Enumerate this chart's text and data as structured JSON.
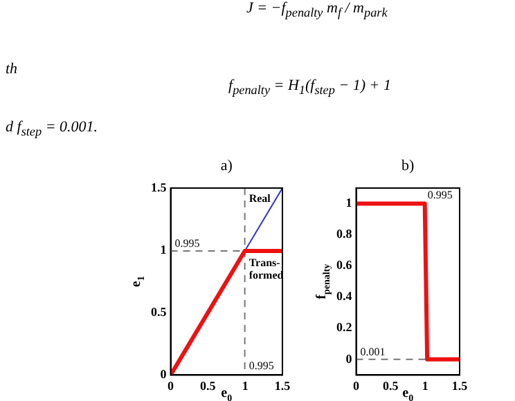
{
  "chart_data": [
    {
      "type": "other",
      "annotations": [
        "J = −f$_{penalty}$ m$_{f}$ / m$_{park}$",
        "th",
        "f$_{penalty}$ = H$_{1}$(f$_{step}$ − 1) + 1",
        "d  f$_{step}$ = 0.001."
      ]
    },
    {
      "type": "line",
      "title": "a)",
      "xlabel": "e$_{0}$",
      "ylabel": "e$_{1}$",
      "xlim": [
        0,
        1.5
      ],
      "ylim": [
        0,
        1.5
      ],
      "xticks": [
        0,
        0.5,
        1,
        1.5
      ],
      "yticks": [
        0,
        0.5,
        1,
        1.5
      ],
      "grid": false,
      "legend": false,
      "series": [
        {
          "name": "Real",
          "color": "#3333cc",
          "x": [
            0.995,
            1.5
          ],
          "values": [
            0.995,
            1.5
          ]
        },
        {
          "name": "Trans- formed",
          "color": "#ee1111",
          "x": [
            0,
            0.995,
            1.5
          ],
          "values": [
            0,
            0.995,
            0.995
          ]
        }
      ],
      "ref_lines": [
        {
          "axis": "x",
          "value": 0.995,
          "label": "0.995",
          "line_style": "dashed"
        },
        {
          "axis": "y",
          "value": 0.995,
          "label": "0.995",
          "line_style": "dashed"
        }
      ]
    },
    {
      "type": "line",
      "title": "b)",
      "xlabel": "e$_{0}$",
      "ylabel": "f$_{penalty}$",
      "xlim": [
        0,
        1.5
      ],
      "ylim": [
        -0.1,
        1.1
      ],
      "xticks": [
        0,
        0.5,
        1,
        1.5
      ],
      "yticks": [
        0,
        0.2,
        0.4,
        0.6,
        0.8,
        1
      ],
      "grid": false,
      "legend": false,
      "series": [
        {
          "color": "#ee1111",
          "x": [
            0,
            0.995,
            1.03,
            1.5
          ],
          "values": [
            1,
            1,
            0.001,
            0.001
          ]
        }
      ],
      "ref_lines": [
        {
          "axis": "y",
          "value": 0.001,
          "label": "0.001",
          "line_style": "dashed"
        }
      ],
      "annotations": [
        {
          "text": "0.995",
          "x": 0.995,
          "y": 1
        }
      ]
    }
  ]
}
